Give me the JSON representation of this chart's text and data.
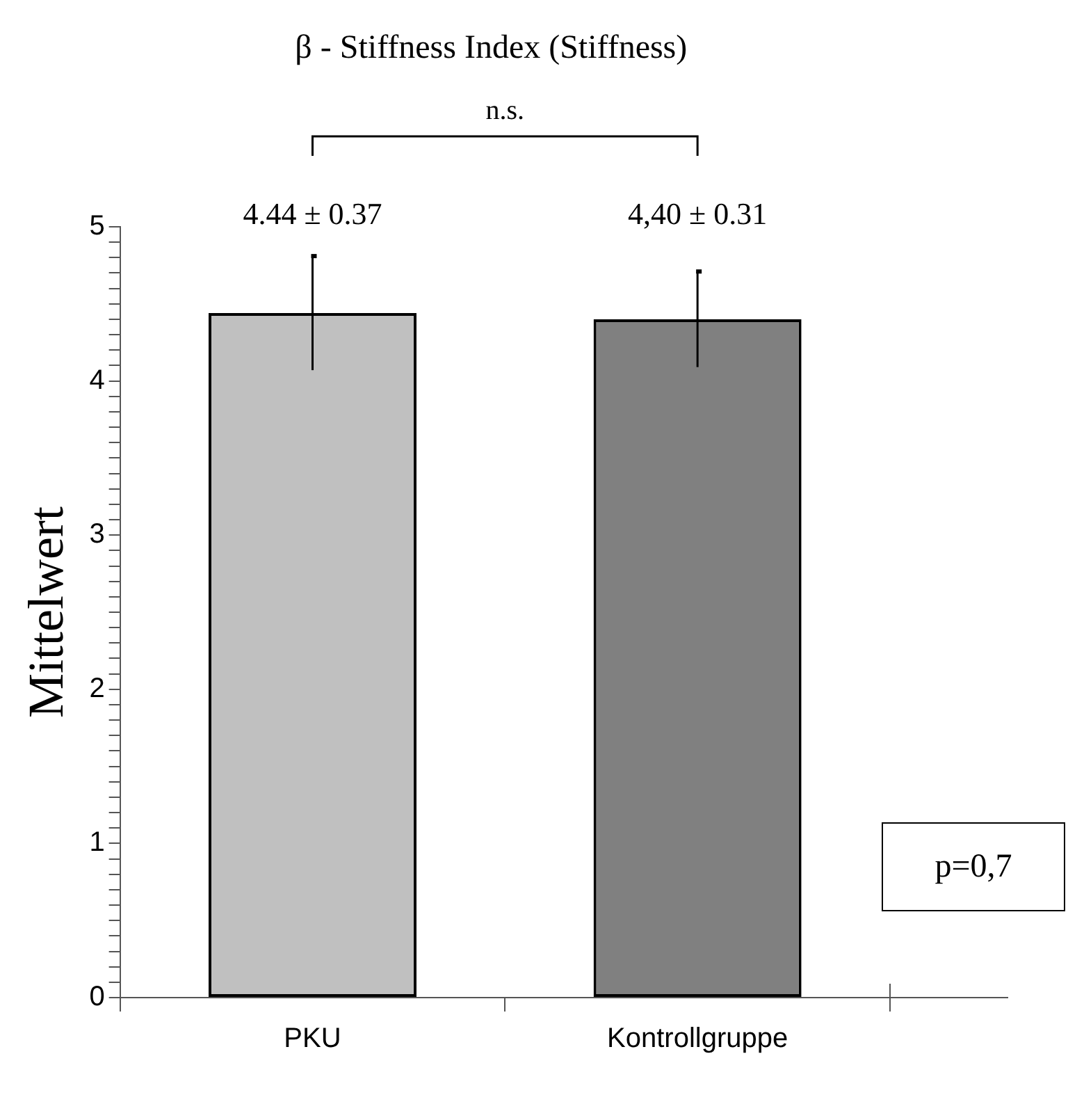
{
  "chart_data": {
    "type": "bar",
    "title": "β - Stiffness Index (Stiffness)",
    "ylabel": "Mittelwert",
    "categories": [
      "PKU",
      "Kontrollgruppe"
    ],
    "values": [
      4.44,
      4.4
    ],
    "colors": [
      "#c0c0c0",
      "#808080"
    ],
    "errors": [
      0.37,
      0.31
    ],
    "value_labels": [
      "4.44 ± 0.37",
      "4,40 ± 0.31"
    ],
    "ylim": [
      0,
      5
    ],
    "yticks": [
      0,
      {
        "value": 0.1,
        "label": null
      },
      {
        "value": 0.2,
        "label": null
      },
      {
        "value": 0.3,
        "label": null
      },
      {
        "value": 0.4,
        "label": null
      },
      {
        "value": 0.5,
        "label": null
      },
      {
        "value": 0.6,
        "label": null
      },
      {
        "value": 0.7,
        "label": null
      },
      {
        "value": 0.8,
        "label": null
      },
      {
        "value": 0.9,
        "label": null
      },
      1,
      {
        "value": 1.1,
        "label": null
      },
      {
        "value": 1.2,
        "label": null
      },
      {
        "value": 1.3,
        "label": null
      },
      {
        "value": 1.4,
        "label": null
      },
      {
        "value": 1.5,
        "label": null
      },
      {
        "value": 1.6,
        "label": null
      },
      {
        "value": 1.7,
        "label": null
      },
      {
        "value": 1.8,
        "label": null
      },
      {
        "value": 1.9,
        "label": null
      },
      2,
      {
        "value": 2.1,
        "label": null
      },
      {
        "value": 2.2,
        "label": null
      },
      {
        "value": 2.3,
        "label": null
      },
      {
        "value": 2.4,
        "label": null
      },
      {
        "value": 2.5,
        "label": null
      },
      {
        "value": 2.6,
        "label": null
      },
      {
        "value": 2.7,
        "label": null
      },
      {
        "value": 2.8,
        "label": null
      },
      {
        "value": 2.9,
        "label": null
      },
      3,
      {
        "value": 3.1,
        "label": null
      },
      {
        "value": 3.2,
        "label": null
      },
      {
        "value": 3.3,
        "label": null
      },
      {
        "value": 3.4,
        "label": null
      },
      {
        "value": 3.5,
        "label": null
      },
      {
        "value": 3.6,
        "label": null
      },
      {
        "value": 3.7,
        "label": null
      },
      {
        "value": 3.8,
        "label": null
      },
      {
        "value": 3.9,
        "label": null
      },
      4,
      {
        "value": 4.1,
        "label": null
      },
      {
        "value": 4.2,
        "label": null
      },
      {
        "value": 4.3,
        "label": null
      },
      {
        "value": 4.4,
        "label": null
      },
      {
        "value": 4.5,
        "label": null
      },
      {
        "value": 4.6,
        "label": null
      },
      {
        "value": 4.7,
        "label": null
      },
      {
        "value": 4.8,
        "label": null
      },
      {
        "value": 4.9,
        "label": null
      },
      5
    ],
    "annotations": [
      "n.s.",
      "p=0,7"
    ],
    "grid": false,
    "legend": false
  }
}
